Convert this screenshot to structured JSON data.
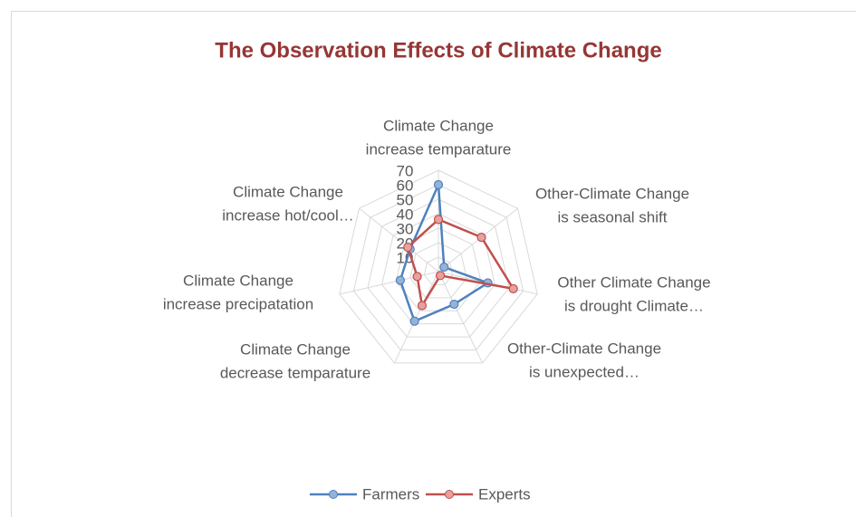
{
  "chart_data": {
    "type": "radar",
    "title": "The Observation Effects of Climate Change",
    "categories": [
      [
        "Climate Change",
        "increase temparature"
      ],
      [
        "Other-Climate Change",
        "is seasonal shift"
      ],
      [
        "Other Climate Change",
        "is drought Climate…"
      ],
      [
        "Other-Climate Change",
        "is unexpected…"
      ],
      [
        "Climate Change",
        "decrease temparature"
      ],
      [
        "Climate Change",
        "increase precipatation"
      ],
      [
        "Climate Change",
        "increase hot/cool…"
      ]
    ],
    "series": [
      {
        "name": "Farmers",
        "color": "#4f81bd",
        "values": [
          60,
          5,
          35,
          25,
          38,
          27,
          25
        ]
      },
      {
        "name": "Experts",
        "color": "#c0504d",
        "values": [
          36,
          38,
          53,
          3,
          26,
          15,
          27
        ]
      }
    ],
    "rlim": [
      0,
      70
    ],
    "rticks": [
      10,
      20,
      30,
      40,
      50,
      60,
      70
    ],
    "grid": true,
    "legend": "bottom"
  }
}
